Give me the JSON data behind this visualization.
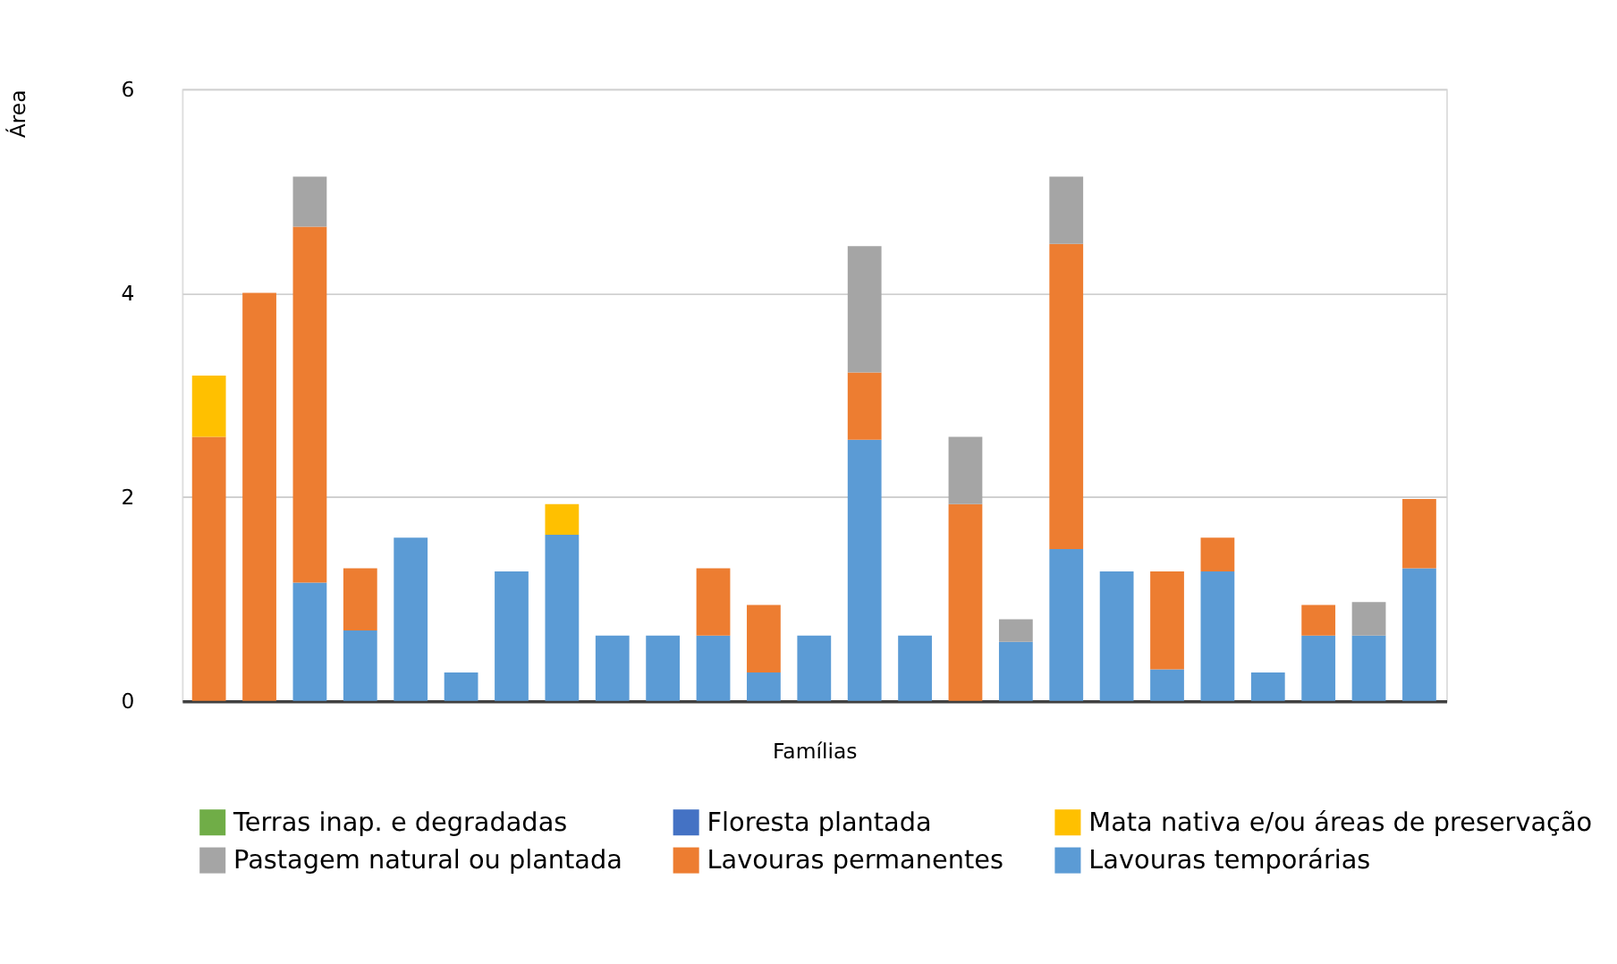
{
  "chart_data": {
    "type": "bar",
    "stacked": true,
    "xlabel": "Famílias",
    "ylabel": "Área",
    "ylim": [
      0,
      6
    ],
    "yticks": [
      0,
      2,
      4,
      6
    ],
    "grid": "y",
    "legend": "bottom",
    "categories": [
      null,
      null,
      null,
      null,
      null,
      null,
      null,
      null,
      null,
      null,
      null,
      null,
      null,
      null,
      null,
      null,
      null,
      null,
      null,
      null,
      null,
      null,
      null,
      null,
      null
    ],
    "series": [
      {
        "name": "Lavouras temporárias",
        "color": "#5b9bd5",
        "values": [
          null,
          null,
          1.16,
          0.69,
          1.6,
          0.28,
          1.27,
          1.63,
          0.64,
          0.64,
          0.64,
          0.28,
          0.64,
          2.56,
          0.64,
          null,
          0.58,
          1.49,
          1.27,
          0.31,
          1.27,
          0.28,
          0.64,
          0.64,
          1.3
        ]
      },
      {
        "name": "Lavouras permanentes",
        "color": "#ed7d31",
        "values": [
          2.59,
          4.0,
          3.49,
          0.61,
          null,
          null,
          null,
          null,
          null,
          null,
          0.66,
          0.66,
          null,
          0.66,
          null,
          1.93,
          null,
          2.99,
          null,
          0.96,
          0.33,
          null,
          0.3,
          null,
          0.68
        ]
      },
      {
        "name": "Pastagem natural ou plantada",
        "color": "#a5a5a5",
        "values": [
          null,
          null,
          0.49,
          null,
          null,
          null,
          null,
          null,
          null,
          null,
          null,
          null,
          null,
          1.24,
          null,
          0.66,
          0.22,
          0.66,
          null,
          null,
          null,
          null,
          null,
          0.33,
          null
        ]
      },
      {
        "name": "Mata nativa e/ou áreas de preservação",
        "color": "#ffc000",
        "values": [
          0.6,
          null,
          null,
          null,
          null,
          null,
          null,
          0.3,
          null,
          null,
          null,
          null,
          null,
          null,
          null,
          null,
          null,
          null,
          null,
          null,
          null,
          null,
          null,
          null,
          null
        ]
      },
      {
        "name": "Floresta plantada",
        "color": "#4472c4",
        "values": [
          null,
          null,
          null,
          null,
          null,
          null,
          null,
          null,
          null,
          null,
          null,
          null,
          null,
          null,
          null,
          null,
          null,
          null,
          null,
          null,
          null,
          null,
          null,
          null,
          null
        ]
      },
      {
        "name": "Terras inap. e degradadas",
        "color": "#70ad47",
        "values": [
          null,
          null,
          null,
          null,
          null,
          null,
          null,
          null,
          null,
          null,
          null,
          null,
          null,
          null,
          null,
          null,
          null,
          null,
          null,
          null,
          null,
          null,
          null,
          null,
          null
        ]
      }
    ]
  }
}
